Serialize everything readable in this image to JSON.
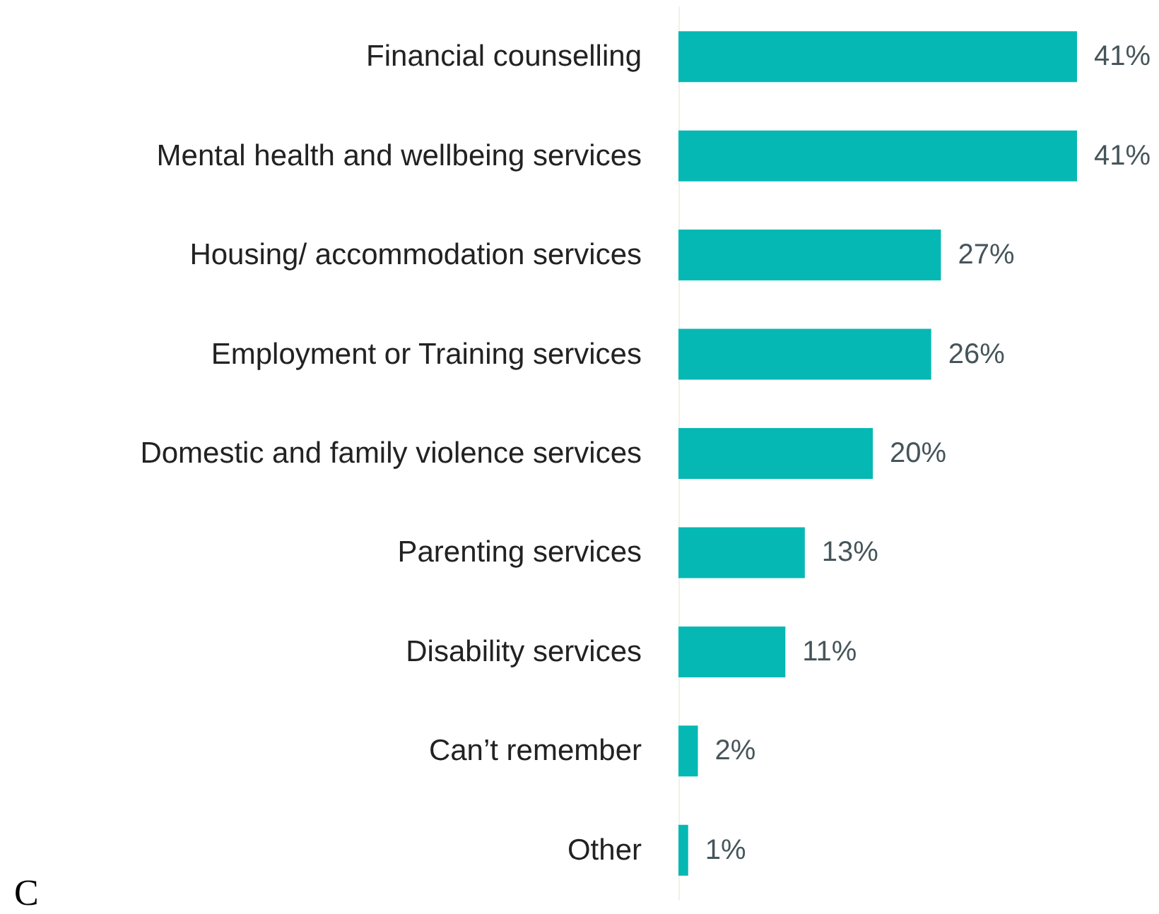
{
  "chart_data": {
    "type": "bar",
    "orientation": "horizontal",
    "categories": [
      "Financial counselling",
      "Mental health and wellbeing services",
      "Housing/ accommodation services",
      "Employment or Training services",
      "Domestic and family violence services",
      "Parenting services",
      "Disability services",
      "Can’t remember",
      "Other"
    ],
    "values": [
      41,
      41,
      27,
      26,
      20,
      13,
      11,
      2,
      1
    ],
    "value_labels": [
      "41%",
      "41%",
      "27%",
      "26%",
      "20%",
      "13%",
      "11%",
      "2%",
      "1%"
    ],
    "color": "#06b8b4",
    "annotations": [
      "C"
    ]
  }
}
